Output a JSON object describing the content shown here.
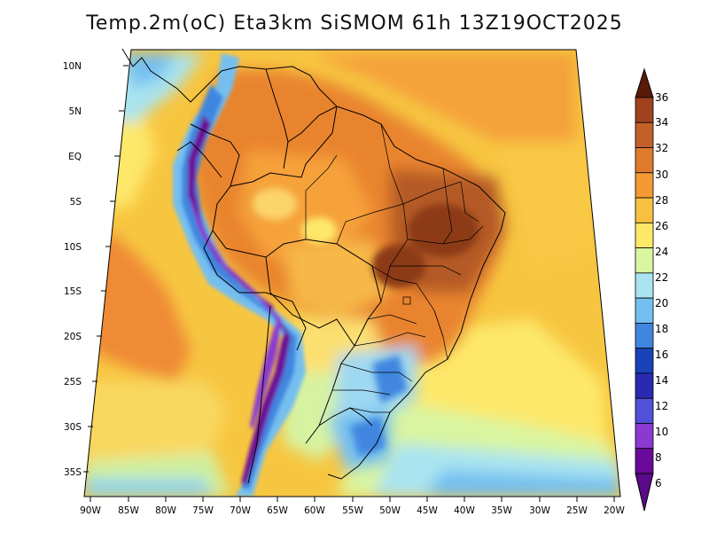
{
  "title": "Temp.2m(oC) Eta3km SiSMOM 61h 13Z19OCT2025",
  "axes": {
    "lat_labels": [
      "10N",
      "5N",
      "EQ",
      "5S",
      "10S",
      "15S",
      "20S",
      "25S",
      "30S",
      "35S"
    ],
    "lon_labels": [
      "90W",
      "85W",
      "80W",
      "75W",
      "70W",
      "65W",
      "60W",
      "55W",
      "50W",
      "45W",
      "40W",
      "35W",
      "30W",
      "25W",
      "20W"
    ]
  },
  "colorbar": {
    "labels": [
      "36",
      "34",
      "32",
      "30",
      "28",
      "26",
      "24",
      "22",
      "20",
      "18",
      "16",
      "14",
      "12",
      "10",
      "8",
      "6"
    ],
    "colors": [
      "#7a2a10",
      "#a0421e",
      "#c2602a",
      "#e07a2c",
      "#f39a34",
      "#f8c040",
      "#fde86a",
      "#d9f5a0",
      "#a9e4f0",
      "#74bff0",
      "#3f86e0",
      "#1a42b8",
      "#2a2ab0",
      "#5050d8",
      "#8a3ad0",
      "#6a0a9a"
    ],
    "arrow_top": "#5a1a08",
    "arrow_bottom": "#5a0a8a"
  }
}
